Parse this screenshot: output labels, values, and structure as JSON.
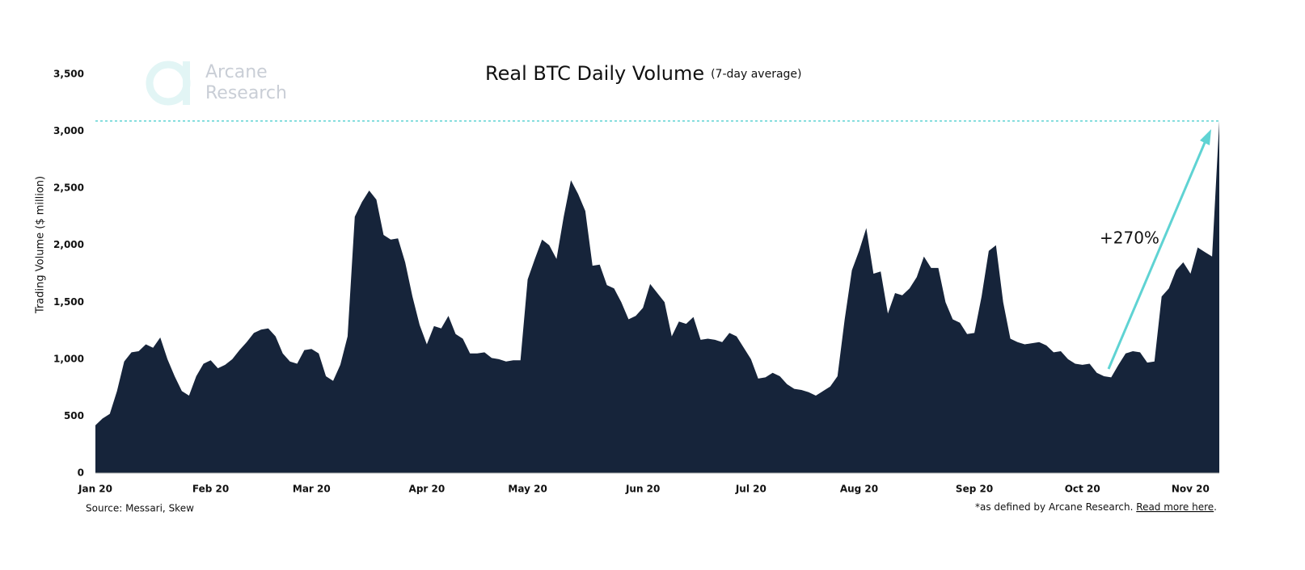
{
  "chart_data": {
    "type": "area",
    "title": "Real BTC Daily Volume",
    "subtitle": "(7-day average)",
    "y_label": "Trading Volume ($ million)",
    "annotation": "+270%",
    "source": "Source: Messari, Skew",
    "footnote": [
      "*as defined by Arcane Research. ",
      "Read more here",
      "."
    ],
    "logo": [
      "Arcane",
      "Research"
    ],
    "color": "#16243a",
    "accent_color": "#5fd3d3",
    "ylim": [
      0,
      3500
    ],
    "yticks": [
      0,
      500,
      {
        "value": 1000,
        "label": "1,000"
      },
      {
        "value": 1500,
        "label": "1,500"
      },
      {
        "value": 2000,
        "label": "2,000"
      },
      {
        "value": 2500,
        "label": "2,500"
      },
      {
        "value": 3000,
        "label": "3,000"
      },
      {
        "value": 3500,
        "label": "3,500"
      }
    ],
    "grid": false,
    "categories": [
      "Jan 20",
      null,
      null,
      null,
      null,
      null,
      null,
      null,
      null,
      null,
      null,
      null,
      null,
      null,
      null,
      null,
      "Feb 20",
      null,
      null,
      null,
      null,
      null,
      null,
      null,
      null,
      null,
      null,
      null,
      null,
      null,
      "Mar 20",
      null,
      null,
      null,
      null,
      null,
      null,
      null,
      null,
      null,
      null,
      null,
      null,
      null,
      null,
      null,
      "Apr 20",
      null,
      null,
      null,
      null,
      null,
      null,
      null,
      null,
      null,
      null,
      null,
      null,
      null,
      "May 20",
      null,
      null,
      null,
      null,
      null,
      null,
      null,
      null,
      null,
      null,
      null,
      null,
      null,
      null,
      null,
      "Jun 20",
      null,
      null,
      null,
      null,
      null,
      null,
      null,
      null,
      null,
      null,
      null,
      null,
      null,
      null,
      "Jul 20",
      null,
      null,
      null,
      null,
      null,
      null,
      null,
      null,
      null,
      null,
      null,
      null,
      null,
      null,
      "Aug 20",
      null,
      null,
      null,
      null,
      null,
      null,
      null,
      null,
      null,
      null,
      null,
      null,
      null,
      null,
      null,
      "Sep 20",
      null,
      null,
      null,
      null,
      null,
      null,
      null,
      null,
      null,
      null,
      null,
      null,
      null,
      null,
      "Oct 20",
      null,
      null,
      null,
      null,
      null,
      null,
      null,
      null,
      null,
      null,
      null,
      null,
      null,
      null,
      "Nov 20",
      null,
      null,
      null,
      null
    ],
    "values": [
      420,
      480,
      520,
      720,
      980,
      1060,
      1070,
      1130,
      1100,
      1190,
      1000,
      850,
      720,
      680,
      850,
      960,
      990,
      920,
      950,
      1000,
      1080,
      1150,
      1230,
      1260,
      1270,
      1200,
      1050,
      980,
      960,
      1080,
      1090,
      1050,
      850,
      810,
      950,
      1200,
      2250,
      2380,
      2480,
      2400,
      2090,
      2050,
      2060,
      1850,
      1550,
      1300,
      1130,
      1290,
      1270,
      1380,
      1220,
      1180,
      1050,
      1050,
      1060,
      1010,
      1000,
      980,
      990,
      990,
      1700,
      1880,
      2050,
      2000,
      1880,
      2250,
      2570,
      2450,
      2300,
      1820,
      1830,
      1650,
      1620,
      1500,
      1350,
      1380,
      1450,
      1660,
      1580,
      1500,
      1200,
      1330,
      1310,
      1370,
      1170,
      1180,
      1170,
      1150,
      1230,
      1200,
      1100,
      1000,
      830,
      840,
      880,
      850,
      780,
      740,
      730,
      710,
      680,
      720,
      760,
      850,
      1350,
      1780,
      1950,
      2150,
      1750,
      1770,
      1400,
      1580,
      1560,
      1620,
      1720,
      1900,
      1800,
      1800,
      1500,
      1350,
      1320,
      1220,
      1230,
      1550,
      1950,
      2000,
      1500,
      1180,
      1150,
      1130,
      1140,
      1150,
      1120,
      1060,
      1070,
      1000,
      960,
      950,
      960,
      880,
      850,
      840,
      950,
      1050,
      1070,
      1060,
      970,
      980,
      1550,
      1620,
      1780,
      1850,
      1750,
      1980,
      1940,
      1900,
      3090
    ]
  }
}
